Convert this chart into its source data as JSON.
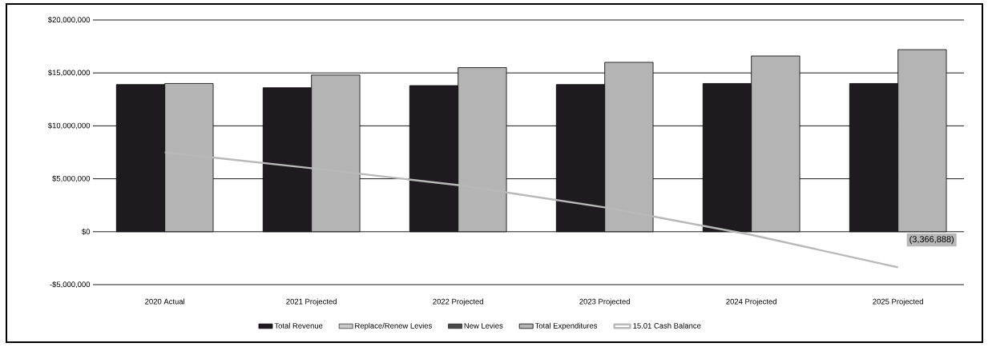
{
  "chart_data": {
    "type": "bar",
    "categories": [
      "2020 Actual",
      "2021 Projected",
      "2022 Projected",
      "2023 Projected",
      "2024 Projected",
      "2025 Projected"
    ],
    "series": [
      {
        "name": "Total Revenue",
        "color": "#1e1a20",
        "values": [
          13900000,
          13600000,
          13800000,
          13900000,
          14000000,
          14000000
        ]
      },
      {
        "name": "Replace/Renew Levies",
        "color": "#c8c8c8",
        "values": [
          null,
          null,
          null,
          null,
          null,
          null
        ]
      },
      {
        "name": "New Levies",
        "color": "#4a4a4a",
        "values": [
          null,
          null,
          null,
          null,
          null,
          null
        ]
      },
      {
        "name": "Total Expenditures",
        "color": "#b4b4b4",
        "values": [
          14000000,
          14800000,
          15500000,
          16000000,
          16600000,
          17200000
        ]
      },
      {
        "name": "15.01 Cash Balance",
        "type": "line",
        "color": "#b8b8b8",
        "values": [
          7500000,
          6000000,
          4400000,
          2300000,
          -300000,
          -3366888
        ],
        "value_labels": [
          null,
          null,
          null,
          null,
          null,
          "(3,366,888)"
        ]
      }
    ],
    "ylim": [
      -5000000,
      20000000
    ],
    "yticks": [
      {
        "value": -5000000,
        "label": "-$5,000,000"
      },
      {
        "value": 0,
        "label": "$0"
      },
      {
        "value": 5000000,
        "label": "$5,000,000"
      },
      {
        "value": 10000000,
        "label": "$10,000,000"
      },
      {
        "value": 15000000,
        "label": "$15,000,000"
      },
      {
        "value": 20000000,
        "label": "$20,000,000"
      }
    ],
    "grid": "y",
    "legend": "bottom"
  }
}
